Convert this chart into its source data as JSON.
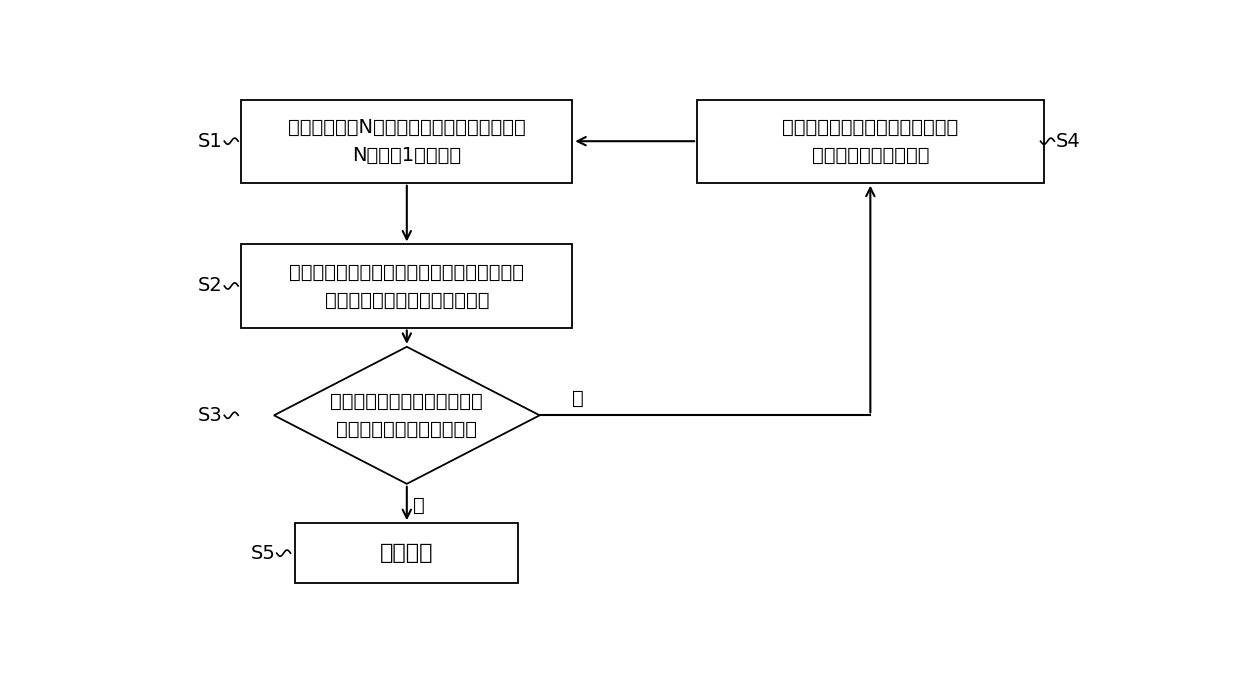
{
  "bg_color": "#ffffff",
  "box_edge_color": "#000000",
  "arrow_color": "#000000",
  "text_color": "#000000",
  "font_size": 14,
  "label_font_size": 14,
  "s1_text": "分别采集盾体N个测量区域的激光扫描数据，\nN为大于1的正整数",
  "s2_text": "根据激光扫描数据拟合获得盾体的拟合直径，\n并渲染获得盾体的三维立体图像",
  "s3_text": "判断拟合直径与盾体的设计直\n径的差值是否在预设范围内",
  "s4_text": "根据三维立体图像反映的盾体形变\n调节盾体的支撑点位置",
  "s5_text": "停止扫描",
  "s1_label": "S1",
  "s2_label": "S2",
  "s3_label": "S3",
  "s4_label": "S4",
  "s5_label": "S5",
  "yes_label": "是",
  "no_label": "否",
  "fig_w": 12.4,
  "fig_h": 6.89,
  "dpi": 100
}
